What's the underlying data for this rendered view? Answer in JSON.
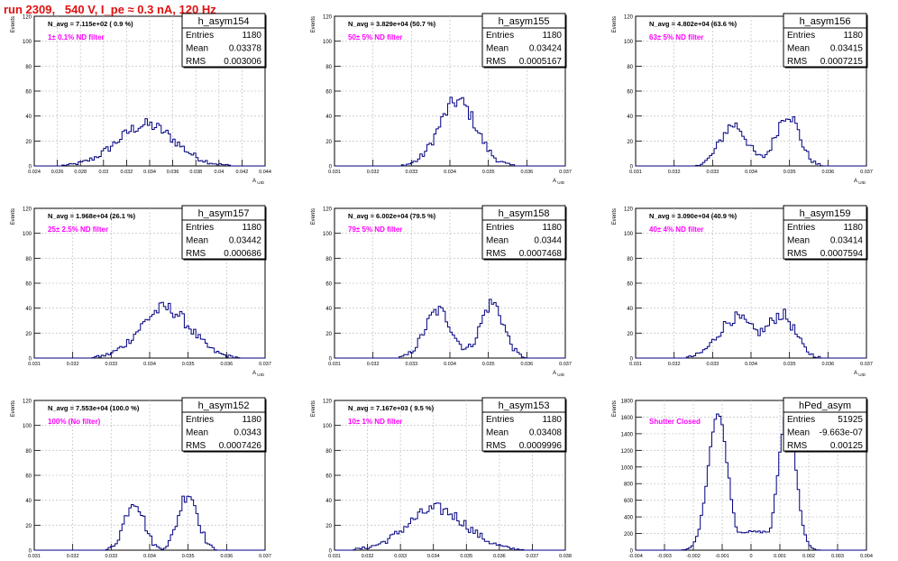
{
  "run_title": "run 2309,   540 V, I_pe ≈ 0.3 nA, 120 Hz",
  "colors": {
    "line": "#000080",
    "annotation": "#ff00ff",
    "title": "#e01010",
    "grid": "#c8c8c8"
  },
  "stats_labels": {
    "entries": "Entries",
    "mean": "Mean",
    "rms": "RMS"
  },
  "chart_data": [
    {
      "type": "histogram",
      "name": "h_asym154",
      "ylabel": "Events",
      "xlabel": "A_UID",
      "ylim": [
        0,
        120
      ],
      "yticks": [
        "0",
        "20",
        "40",
        "60",
        "80",
        "100",
        "120"
      ],
      "xticks": [
        0.024,
        0.026,
        0.028,
        0.03,
        0.032,
        0.034,
        0.036,
        0.038,
        0.04,
        0.042,
        0.044
      ],
      "xtick_labels": [
        "0.024",
        "0.026",
        "0.028",
        "0.03",
        "0.032",
        "0.034",
        "0.036",
        "0.038",
        "0.04",
        "0.042",
        "0.044"
      ],
      "xlim": [
        0.024,
        0.044
      ],
      "navg": "N_avg = 7.115e+02 ( 0.9 %)",
      "filter": "1± 0.1% ND filter",
      "stats": {
        "entries": "1180",
        "mean": "0.03378",
        "rms": "0.003006"
      },
      "peaks": [
        {
          "mu": 0.0337,
          "sigma": 0.0025,
          "amp": 33
        }
      ]
    },
    {
      "type": "histogram",
      "name": "h_asym155",
      "ylabel": "Events",
      "xlabel": "A_UID",
      "ylim": [
        0,
        120
      ],
      "yticks": [
        "0",
        "20",
        "40",
        "60",
        "80",
        "100",
        "120"
      ],
      "xticks": [
        0.031,
        0.032,
        0.033,
        0.034,
        0.035,
        0.036,
        0.037
      ],
      "xtick_labels": [
        "0.031",
        "0.032",
        "0.033",
        "0.034",
        "0.035",
        "0.036",
        "0.037"
      ],
      "xlim": [
        0.031,
        0.037
      ],
      "navg": "N_avg = 3.829e+04 (50.7 %)",
      "filter": "50± 5% ND filter",
      "stats": {
        "entries": "1180",
        "mean": "0.03424",
        "rms": "0.0005167"
      },
      "peaks": [
        {
          "mu": 0.0342,
          "sigma": 0.00048,
          "amp": 52
        }
      ]
    },
    {
      "type": "histogram",
      "name": "h_asym156",
      "ylabel": "Events",
      "xlabel": "A_UID",
      "ylim": [
        0,
        120
      ],
      "yticks": [
        "0",
        "20",
        "40",
        "60",
        "80",
        "100",
        "120"
      ],
      "xticks": [
        0.031,
        0.032,
        0.033,
        0.034,
        0.035,
        0.036,
        0.037
      ],
      "xtick_labels": [
        "0.031",
        "0.032",
        "0.033",
        "0.034",
        "0.035",
        "0.036",
        "0.037"
      ],
      "xlim": [
        0.031,
        0.037
      ],
      "navg": "N_avg = 4.802e+04 (63.6 %)",
      "filter": "63± 5% ND filter",
      "stats": {
        "entries": "1180",
        "mean": "0.03415",
        "rms": "0.0007215"
      },
      "peaks": [
        {
          "mu": 0.03355,
          "sigma": 0.00035,
          "amp": 33
        },
        {
          "mu": 0.03495,
          "sigma": 0.0003,
          "amp": 42
        }
      ]
    },
    {
      "type": "histogram",
      "name": "h_asym157",
      "ylabel": "Events",
      "xlabel": "A_UID",
      "ylim": [
        0,
        120
      ],
      "yticks": [
        "0",
        "20",
        "40",
        "60",
        "80",
        "100",
        "120"
      ],
      "xticks": [
        0.031,
        0.032,
        0.033,
        0.034,
        0.035,
        0.036,
        0.037
      ],
      "xtick_labels": [
        "0.031",
        "0.032",
        "0.033",
        "0.034",
        "0.035",
        "0.036",
        "0.037"
      ],
      "xlim": [
        0.031,
        0.037
      ],
      "navg": "N_avg = 1.968e+04 (26.1 %)",
      "filter": "25± 2.5% ND filter",
      "stats": {
        "entries": "1180",
        "mean": "0.03442",
        "rms": "0.000686"
      },
      "peaks": [
        {
          "mu": 0.0344,
          "sigma": 0.00065,
          "amp": 40
        }
      ]
    },
    {
      "type": "histogram",
      "name": "h_asym158",
      "ylabel": "Events",
      "xlabel": "A_UID",
      "ylim": [
        0,
        120
      ],
      "yticks": [
        "0",
        "20",
        "40",
        "60",
        "80",
        "100",
        "120"
      ],
      "xticks": [
        0.031,
        0.032,
        0.033,
        0.034,
        0.035,
        0.036,
        0.037
      ],
      "xtick_labels": [
        "0.031",
        "0.032",
        "0.033",
        "0.034",
        "0.035",
        "0.036",
        "0.037"
      ],
      "xlim": [
        0.031,
        0.037
      ],
      "navg": "N_avg = 6.002e+04 (79.5 %)",
      "filter": "79± 5% ND filter",
      "stats": {
        "entries": "1180",
        "mean": "0.0344",
        "rms": "0.0007468"
      },
      "peaks": [
        {
          "mu": 0.0337,
          "sigma": 0.00035,
          "amp": 38
        },
        {
          "mu": 0.0351,
          "sigma": 0.0003,
          "amp": 44
        }
      ]
    },
    {
      "type": "histogram",
      "name": "h_asym159",
      "ylabel": "Events",
      "xlabel": "A_UID",
      "ylim": [
        0,
        120
      ],
      "yticks": [
        "0",
        "20",
        "40",
        "60",
        "80",
        "100",
        "120"
      ],
      "xticks": [
        0.031,
        0.032,
        0.033,
        0.034,
        0.035,
        0.036,
        0.037
      ],
      "xtick_labels": [
        "0.031",
        "0.032",
        "0.033",
        "0.034",
        "0.035",
        "0.036",
        "0.037"
      ],
      "xlim": [
        0.031,
        0.037
      ],
      "navg": "N_avg = 3.090e+04 (40.9 %)",
      "filter": "40± 4% ND filter",
      "stats": {
        "entries": "1180",
        "mean": "0.03414",
        "rms": "0.0007594"
      },
      "peaks": [
        {
          "mu": 0.0336,
          "sigma": 0.00045,
          "amp": 32
        },
        {
          "mu": 0.0348,
          "sigma": 0.00035,
          "amp": 34
        }
      ]
    },
    {
      "type": "histogram",
      "name": "h_asym152",
      "ylabel": "Events",
      "xlabel": "A_UID",
      "ylim": [
        0,
        120
      ],
      "yticks": [
        "0",
        "20",
        "40",
        "60",
        "80",
        "100",
        "120"
      ],
      "xticks": [
        0.031,
        0.032,
        0.033,
        0.034,
        0.035,
        0.036,
        0.037
      ],
      "xtick_labels": [
        "0.031",
        "0.032",
        "0.033",
        "0.034",
        "0.035",
        "0.036",
        "0.037"
      ],
      "xlim": [
        0.031,
        0.037
      ],
      "navg": "N_avg = 7.553e+04 (100.0 %)",
      "filter": "100% (No filter)",
      "stats": {
        "entries": "1180",
        "mean": "0.0343",
        "rms": "0.0007426"
      },
      "peaks": [
        {
          "mu": 0.0336,
          "sigma": 0.00025,
          "amp": 40
        },
        {
          "mu": 0.035,
          "sigma": 0.00025,
          "amp": 46
        }
      ]
    },
    {
      "type": "histogram",
      "name": "h_asym153",
      "ylabel": "Events",
      "xlabel": "A_UID",
      "ylim": [
        0,
        120
      ],
      "yticks": [
        "0",
        "20",
        "40",
        "60",
        "80",
        "100",
        "120"
      ],
      "xticks": [
        0.031,
        0.032,
        0.033,
        0.034,
        0.035,
        0.036,
        0.037,
        0.038
      ],
      "xtick_labels": [
        "0.031",
        "0.032",
        "0.033",
        "0.034",
        "0.035",
        "0.036",
        "0.037",
        "0.038"
      ],
      "xlim": [
        0.031,
        0.038
      ],
      "navg": "N_avg = 7.167e+03 ( 9.5 %)",
      "filter": "10± 1% ND filter",
      "stats": {
        "entries": "1180",
        "mean": "0.03408",
        "rms": "0.0009996"
      },
      "peaks": [
        {
          "mu": 0.0341,
          "sigma": 0.0009,
          "amp": 33
        }
      ]
    },
    {
      "type": "histogram",
      "name": "hPed_asym",
      "ylabel": "Events",
      "xlabel": "",
      "ylim": [
        0,
        1800
      ],
      "yticks": [
        "0",
        "200",
        "400",
        "600",
        "800",
        "1000",
        "1200",
        "1400",
        "1600",
        "1800"
      ],
      "xticks": [
        -0.004,
        -0.003,
        -0.002,
        -0.001,
        0,
        0.001,
        0.002,
        0.003,
        0.004
      ],
      "xtick_labels": [
        "-0.004",
        "-0.003",
        "-0.002",
        "-0.001",
        "0",
        "0.001",
        "0.002",
        "0.003",
        "0.004"
      ],
      "xlim": [
        -0.004,
        0.004
      ],
      "navg": "",
      "filter": "Shutter Closed",
      "stats": {
        "entries": "51925",
        "mean": "-9.663e-07",
        "rms": "0.00125"
      },
      "peaks": [
        {
          "mu": -0.00115,
          "sigma": 0.00034,
          "amp": 1640
        },
        {
          "mu": 0.00125,
          "sigma": 0.0003,
          "amp": 1660
        }
      ],
      "baseline": 220
    }
  ]
}
